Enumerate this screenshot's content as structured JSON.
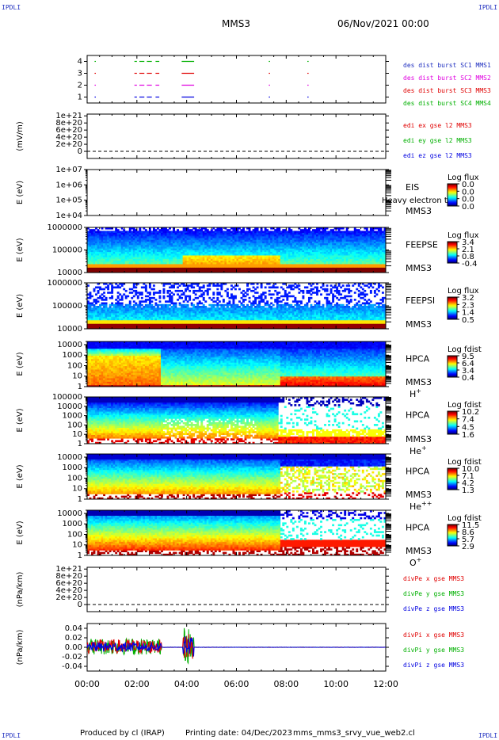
{
  "header": {
    "corner_label": "IPDLI",
    "spacecraft": "MMS3",
    "date_time": "06/Nov/2021 00:00"
  },
  "footer": {
    "produced_by": "Produced by cl (IRAP)",
    "printing_date": "Printing date: 04/Dec/2023",
    "script_name": "mms_mms3_srvy_vue_web2.cl"
  },
  "colors": {
    "red": "#e00000",
    "green": "#00b000",
    "blue": "#0000e0",
    "magenta": "#e000e0",
    "legend_blue": "#2030c0"
  },
  "chart_data": [
    {
      "type": "scatter",
      "id": "burst",
      "ylim": [
        0.5,
        4.5
      ],
      "yticks": [
        {
          "v": 1,
          "l": "1"
        },
        {
          "v": 2,
          "l": "2"
        },
        {
          "v": 3,
          "l": "3"
        },
        {
          "v": 4,
          "l": "4"
        }
      ],
      "segments": [
        {
          "row": 1,
          "color": "#0000e0",
          "x": [
            [
              0.3,
              0.35
            ],
            [
              1.9,
              2.0
            ],
            [
              2.1,
              2.3
            ],
            [
              2.4,
              2.6
            ],
            [
              2.75,
              2.9
            ],
            [
              3.8,
              4.3
            ],
            [
              7.3,
              7.35
            ],
            [
              8.85,
              8.9
            ]
          ]
        },
        {
          "row": 2,
          "color": "#e000e0",
          "x": [
            [
              0.3,
              0.35
            ],
            [
              1.9,
              2.0
            ],
            [
              2.1,
              2.3
            ],
            [
              2.4,
              2.6
            ],
            [
              2.75,
              2.9
            ],
            [
              3.8,
              4.3
            ],
            [
              7.3,
              7.35
            ],
            [
              8.85,
              8.9
            ]
          ]
        },
        {
          "row": 3,
          "color": "#e00000",
          "x": [
            [
              0.3,
              0.35
            ],
            [
              1.9,
              2.0
            ],
            [
              2.1,
              2.3
            ],
            [
              2.4,
              2.6
            ],
            [
              2.75,
              2.9
            ],
            [
              3.8,
              4.3
            ],
            [
              7.3,
              7.35
            ],
            [
              8.85,
              8.9
            ]
          ]
        },
        {
          "row": 4,
          "color": "#00b000",
          "x": [
            [
              0.3,
              0.35
            ],
            [
              1.9,
              2.0
            ],
            [
              2.1,
              2.3
            ],
            [
              2.4,
              2.6
            ],
            [
              2.75,
              2.9
            ],
            [
              3.8,
              4.3
            ],
            [
              7.3,
              7.35
            ],
            [
              8.85,
              8.9
            ]
          ]
        }
      ],
      "legend": [
        {
          "text": "des dist burst SC1 MMS1",
          "color": "#2030c0"
        },
        {
          "text": "des dist burst SC2 MMS2",
          "color": "#e000e0"
        },
        {
          "text": "des dist burst SC3 MMS3",
          "color": "#e00000"
        },
        {
          "text": "des dist burst SC4 MMS4",
          "color": "#00b000"
        }
      ]
    },
    {
      "type": "line",
      "id": "edi",
      "ylabel": "(mV/m)",
      "ylim": [
        -2e+20,
        1.05e+21
      ],
      "yticks": [
        {
          "v": 0,
          "l": "0"
        },
        {
          "v": 2e+20,
          "l": "2e+20"
        },
        {
          "v": 4e+20,
          "l": "4e+20"
        },
        {
          "v": 6e+20,
          "l": "6e+20"
        },
        {
          "v": 8e+20,
          "l": "8e+20"
        },
        {
          "v": 1e+21,
          "l": "1e+21"
        }
      ],
      "zero_line": true,
      "legend": [
        {
          "text": "edi ex gse l2 MMS3",
          "color": "#e00000"
        },
        {
          "text": "edi ey gse l2 MMS3",
          "color": "#00b000"
        },
        {
          "text": "edi ez gse l2 MMS3",
          "color": "#0000e0"
        }
      ]
    },
    {
      "type": "heatmap",
      "id": "eis",
      "ylabel": "E (eV)",
      "log": true,
      "ylim": [
        10000.0,
        10000000.0
      ],
      "yticks": [
        {
          "v": 10000.0,
          "l": "1e+04"
        },
        {
          "v": 100000.0,
          "l": "1e+05"
        },
        {
          "v": 1000000.0,
          "l": "1e+06"
        },
        {
          "v": 10000000.0,
          "l": "1e+07"
        }
      ],
      "labels": [
        "EIS",
        "MMS3"
      ],
      "extra_label": "Heavy electron to",
      "cbar": {
        "title": "Log flux",
        "ticks": [
          "0.0",
          "0.0",
          "0.0",
          "0.0"
        ]
      },
      "empty": true
    },
    {
      "type": "heatmap",
      "id": "feepse",
      "ylabel": "E (eV)",
      "log": true,
      "ylim": [
        10000.0,
        1000000.0
      ],
      "yticks": [
        {
          "v": 10000.0,
          "l": "10000"
        },
        {
          "v": 100000.0,
          "l": "100000"
        },
        {
          "v": 1000000.0,
          "l": "1000000"
        }
      ],
      "labels": [
        "FEEPSE",
        "MMS3"
      ],
      "cbar": {
        "title": "Log flux",
        "ticks": [
          "3.4",
          "2.1",
          "0.8",
          "-0.4"
        ]
      },
      "empty": false
    },
    {
      "type": "heatmap",
      "id": "feepsi",
      "ylabel": "E (eV)",
      "log": true,
      "ylim": [
        10000.0,
        1000000.0
      ],
      "yticks": [
        {
          "v": 10000.0,
          "l": "10000"
        },
        {
          "v": 100000.0,
          "l": "100000"
        },
        {
          "v": 1000000.0,
          "l": "1000000"
        }
      ],
      "labels": [
        "FEEPSI",
        "MMS3"
      ],
      "cbar": {
        "title": "Log flux",
        "ticks": [
          "3.2",
          "2.3",
          "1.4",
          "0.5"
        ]
      },
      "empty": false
    },
    {
      "type": "heatmap",
      "id": "hpca_h",
      "ylabel": "E (eV)",
      "log": true,
      "ylim": [
        1,
        20000.0
      ],
      "yticks": [
        {
          "v": 1,
          "l": "1"
        },
        {
          "v": 10,
          "l": "10"
        },
        {
          "v": 100,
          "l": "100"
        },
        {
          "v": 1000,
          "l": "1000"
        },
        {
          "v": 10000,
          "l": "10000"
        }
      ],
      "labels": [
        "HPCA",
        "MMS3"
      ],
      "species": "H",
      "charge": "+",
      "cbar": {
        "title": "Log fdist",
        "ticks": [
          "9.5",
          "6.4",
          "3.4",
          "0.4"
        ]
      },
      "empty": false
    },
    {
      "type": "heatmap",
      "id": "hpca_he",
      "ylabel": "E (eV)",
      "log": true,
      "ylim": [
        1,
        100000.0
      ],
      "yticks": [
        {
          "v": 1,
          "l": "1"
        },
        {
          "v": 10,
          "l": "10"
        },
        {
          "v": 100,
          "l": "100"
        },
        {
          "v": 1000,
          "l": "1000"
        },
        {
          "v": 10000,
          "l": "10000"
        },
        {
          "v": 100000,
          "l": "100000"
        }
      ],
      "labels": [
        "HPCA",
        "MMS3"
      ],
      "species": "He",
      "charge": "+",
      "cbar": {
        "title": "Log fdist",
        "ticks": [
          "10.2",
          "7.4",
          "4.5",
          "1.6"
        ]
      },
      "empty": false
    },
    {
      "type": "heatmap",
      "id": "hpca_hepp",
      "ylabel": "E (eV)",
      "log": true,
      "ylim": [
        1,
        20000.0
      ],
      "yticks": [
        {
          "v": 1,
          "l": "1"
        },
        {
          "v": 10,
          "l": "10"
        },
        {
          "v": 100,
          "l": "100"
        },
        {
          "v": 1000,
          "l": "1000"
        },
        {
          "v": 10000,
          "l": "10000"
        }
      ],
      "labels": [
        "HPCA",
        "MMS3"
      ],
      "species": "He",
      "charge": "++",
      "cbar": {
        "title": "Log fdist",
        "ticks": [
          "10.0",
          "7.1",
          "4.2",
          "1.3"
        ]
      },
      "empty": false
    },
    {
      "type": "heatmap",
      "id": "hpca_o",
      "ylabel": "E (eV)",
      "log": true,
      "ylim": [
        1,
        20000.0
      ],
      "yticks": [
        {
          "v": 1,
          "l": "1"
        },
        {
          "v": 10,
          "l": "10"
        },
        {
          "v": 100,
          "l": "100"
        },
        {
          "v": 1000,
          "l": "1000"
        },
        {
          "v": 10000,
          "l": "10000"
        }
      ],
      "labels": [
        "HPCA",
        "MMS3"
      ],
      "species": "O",
      "charge": "+",
      "cbar": {
        "title": "Log fdist",
        "ticks": [
          "11.5",
          "8.6",
          "5.7",
          "2.9"
        ]
      },
      "empty": false
    },
    {
      "type": "line",
      "id": "divpe",
      "ylabel": "(nPa/km)",
      "ylim": [
        -2e+20,
        1.05e+21
      ],
      "yticks": [
        {
          "v": 0,
          "l": "0"
        },
        {
          "v": 2e+20,
          "l": "2e+20"
        },
        {
          "v": 4e+20,
          "l": "4e+20"
        },
        {
          "v": 6e+20,
          "l": "6e+20"
        },
        {
          "v": 8e+20,
          "l": "8e+20"
        },
        {
          "v": 1e+21,
          "l": "1e+21"
        }
      ],
      "zero_line": true,
      "legend": [
        {
          "text": "divPe x gse MMS3",
          "color": "#e00000"
        },
        {
          "text": "divPe y gse MMS3",
          "color": "#00b000"
        },
        {
          "text": "divPe z gse MMS3",
          "color": "#0000e0"
        }
      ]
    },
    {
      "type": "line",
      "id": "divpi",
      "ylabel": "(nPa/km)",
      "ylim": [
        -0.05,
        0.05
      ],
      "yticks": [
        {
          "v": -0.04,
          "l": "-0.04"
        },
        {
          "v": -0.02,
          "l": "-0.02"
        },
        {
          "v": 0,
          "l": "0.00"
        },
        {
          "v": 0.02,
          "l": "0.02"
        },
        {
          "v": 0.04,
          "l": "0.04"
        }
      ],
      "zero_line": false,
      "legend": [
        {
          "text": "divPi x gse MMS3",
          "color": "#e00000"
        },
        {
          "text": "divPi y gse MMS3",
          "color": "#00b000"
        },
        {
          "text": "divPi z gse MMS3",
          "color": "#0000e0"
        }
      ]
    }
  ],
  "time_axis": {
    "xlim": [
      0,
      12
    ],
    "ticks": [
      {
        "v": 0,
        "l": "00:00"
      },
      {
        "v": 2,
        "l": "02:00"
      },
      {
        "v": 4,
        "l": "04:00"
      },
      {
        "v": 6,
        "l": "06:00"
      },
      {
        "v": 8,
        "l": "08:00"
      },
      {
        "v": 10,
        "l": "10:00"
      },
      {
        "v": 12,
        "l": "12:00"
      }
    ]
  }
}
